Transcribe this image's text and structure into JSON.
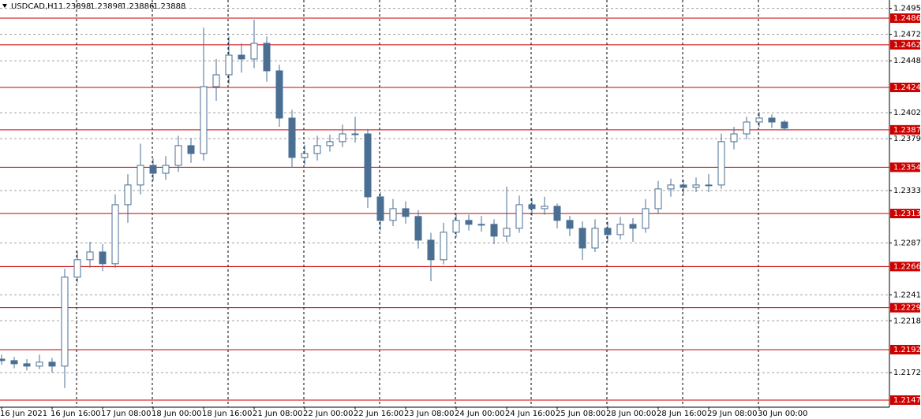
{
  "header": {
    "symbol": "USDCAD,H1",
    "values": [
      1.23898,
      1.23898,
      1.23886,
      1.23888
    ]
  },
  "chart_data": {
    "type": "candlestick",
    "categories": [
      "16 Jun 2021",
      null,
      null,
      null,
      "16 Jun 16:00",
      null,
      null,
      null,
      "17 Jun 08:00",
      null,
      null,
      null,
      "18 Jun 00:00",
      null,
      null,
      null,
      "18 Jun 16:00",
      null,
      null,
      null,
      "21 Jun 08:00",
      null,
      null,
      null,
      "22 Jun 00:00",
      null,
      null,
      null,
      "22 Jun 16:00",
      null,
      null,
      null,
      "23 Jun 08:00",
      null,
      null,
      null,
      "24 Jun 00:00",
      null,
      null,
      null,
      "24 Jun 16:00",
      null,
      null,
      null,
      "25 Jun 08:00",
      null,
      null,
      null,
      "28 Jun 00:00",
      null,
      null,
      null,
      "28 Jun 16:00",
      null,
      null,
      null,
      "29 Jun 08:00",
      null,
      null,
      null,
      "30 Jun 00:00",
      null,
      null
    ],
    "open": [
      1.2184,
      1.21827,
      1.21799,
      1.21778,
      1.21813,
      1.21778,
      1.22567,
      1.22721,
      1.2279,
      1.22686,
      1.23209,
      1.23384,
      1.23558,
      1.23488,
      1.23558,
      1.23733,
      1.23663,
      1.24256,
      1.24361,
      1.24535,
      1.24501,
      1.2464,
      1.24396,
      1.23977,
      1.23628,
      1.23663,
      1.23733,
      1.23768,
      1.23837,
      1.23837,
      1.23279,
      1.2307,
      1.23174,
      1.23105,
      1.22895,
      1.22721,
      1.22965,
      1.2307,
      1.23035,
      1.23035,
      1.2293,
      1.23,
      1.23209,
      1.23174,
      1.23195,
      1.2307,
      1.23,
      1.22825,
      1.23,
      1.22944,
      1.23035,
      1.23,
      1.23174,
      1.23349,
      1.23384,
      1.23363,
      1.23384,
      1.23384,
      1.23768,
      1.23837,
      1.23942,
      1.23977,
      1.23942
    ],
    "high": [
      1.2188,
      1.2186,
      1.2184,
      1.2188,
      1.2185,
      1.2264,
      1.228,
      1.2288,
      1.2286,
      1.233,
      1.2348,
      1.2375,
      1.2362,
      1.2364,
      1.2382,
      1.238,
      1.2478,
      1.245,
      1.247,
      1.2464,
      1.2485,
      1.247,
      1.2445,
      1.2405,
      1.2374,
      1.2382,
      1.2383,
      1.2392,
      1.2399,
      1.2388,
      1.2332,
      1.2326,
      1.2324,
      1.2316,
      1.2296,
      1.2305,
      1.2313,
      1.2312,
      1.2311,
      1.2308,
      1.2337,
      1.2329,
      1.2327,
      1.2328,
      1.2322,
      1.2311,
      1.2306,
      1.2308,
      1.2306,
      1.231,
      1.2309,
      1.2326,
      1.2342,
      1.2344,
      1.2343,
      1.2345,
      1.2348,
      1.2384,
      1.239,
      1.2399,
      1.2403,
      1.2401,
      1.2396
    ],
    "low": [
      1.2179,
      1.2176,
      1.2174,
      1.2175,
      1.2172,
      1.21583,
      1.2252,
      1.2265,
      1.2262,
      1.2265,
      1.2305,
      1.233,
      1.2342,
      1.2343,
      1.235,
      1.2358,
      1.236,
      1.2413,
      1.2428,
      1.2438,
      1.2442,
      1.243,
      1.239,
      1.2354,
      1.2356,
      1.236,
      1.2368,
      1.2372,
      1.2376,
      1.2318,
      1.2298,
      1.2302,
      1.2304,
      1.2282,
      1.2253,
      1.2268,
      1.2292,
      1.2298,
      1.2297,
      1.2286,
      1.2288,
      1.2296,
      1.2311,
      1.2312,
      1.23,
      1.2293,
      1.2272,
      1.2279,
      1.2288,
      1.229,
      1.2288,
      1.2296,
      1.2313,
      1.2328,
      1.233,
      1.2332,
      1.2332,
      1.2335,
      1.237,
      1.2379,
      1.239,
      1.2389,
      1.2387
    ],
    "close": [
      1.21827,
      1.21799,
      1.21778,
      1.21813,
      1.21778,
      1.22567,
      1.22721,
      1.2279,
      1.22686,
      1.23209,
      1.23384,
      1.23558,
      1.23488,
      1.23558,
      1.23733,
      1.23663,
      1.24256,
      1.24361,
      1.24535,
      1.24501,
      1.2464,
      1.24396,
      1.23977,
      1.23628,
      1.23663,
      1.23733,
      1.23768,
      1.23837,
      1.23837,
      1.23279,
      1.2307,
      1.23174,
      1.23105,
      1.22895,
      1.22721,
      1.22965,
      1.2307,
      1.23035,
      1.23035,
      1.2293,
      1.23,
      1.23209,
      1.23174,
      1.23195,
      1.2307,
      1.23,
      1.22825,
      1.23,
      1.22944,
      1.23035,
      1.23,
      1.23174,
      1.23349,
      1.23384,
      1.23363,
      1.23384,
      1.23384,
      1.23768,
      1.23837,
      1.23942,
      1.23977,
      1.23942,
      1.23888
    ],
    "color": "#4a6f93",
    "up_fill": "#ffffff",
    "ylim": [
      1.21414,
      1.25024
    ],
    "yticks": [
      {
        "value": 1.2495,
        "label": "1.24950"
      },
      {
        "value": 1.2472,
        "label": "1.24720"
      },
      {
        "value": 1.24485,
        "label": "1.24485"
      },
      {
        "value": 1.24025,
        "label": "1.24025"
      },
      {
        "value": 1.23795,
        "label": "1.23795"
      },
      {
        "value": 1.23335,
        "label": "1.23335"
      },
      {
        "value": 1.2287,
        "label": "1.22870"
      },
      {
        "value": 1.2241,
        "label": "1.22410"
      },
      {
        "value": 1.2218,
        "label": "1.22180"
      },
      {
        "value": 1.2172,
        "label": "1.21720"
      }
    ],
    "levels": [
      1.24863,
      1.24627,
      1.24249,
      1.23873,
      1.23541,
      1.23131,
      1.22661,
      1.22296,
      1.21924,
      1.21477
    ],
    "level_color": "#cc0000",
    "grid": true
  }
}
